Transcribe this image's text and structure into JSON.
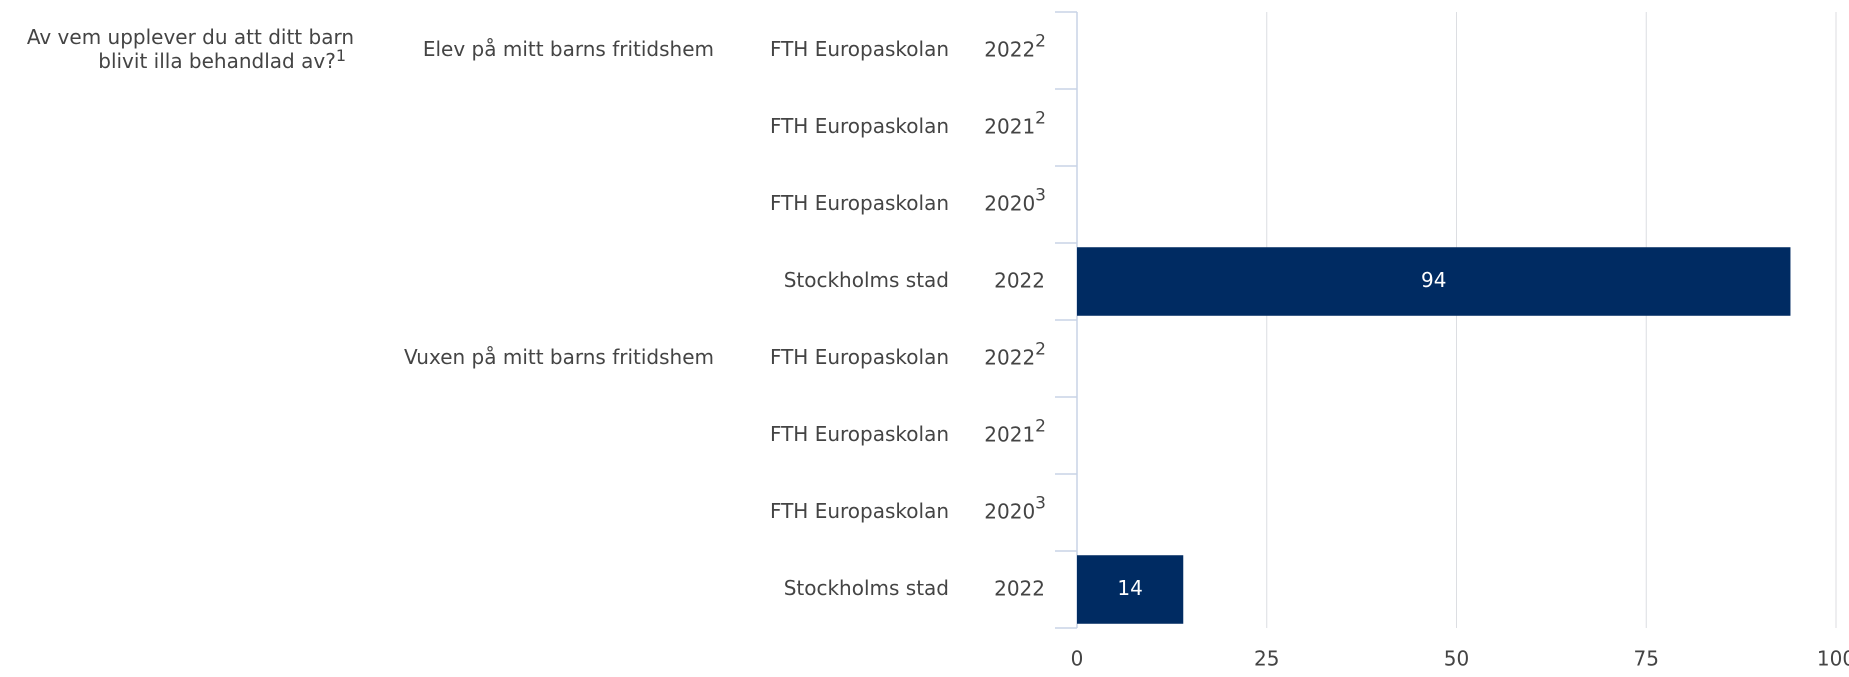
{
  "chart_data": {
    "type": "bar",
    "title": [
      "Av vem upplever du att ditt barn",
      "blivit illa behandlad av?"
    ],
    "title_note": "1",
    "groups": [
      {
        "name": "Elev på mitt barns fritidshem",
        "categories": [
          {
            "label": "FTH Europaskolan",
            "year": "2022",
            "note": "2"
          },
          {
            "label": "FTH Europaskolan",
            "year": "2021",
            "note": "2"
          },
          {
            "label": "FTH Europaskolan",
            "year": "2020",
            "note": "3"
          },
          {
            "label": "Stockholms stad",
            "year": "2022"
          }
        ],
        "values": [
          null,
          null,
          null,
          94
        ]
      },
      {
        "name": "Vuxen på mitt barns fritidshem",
        "categories": [
          {
            "label": "FTH Europaskolan",
            "year": "2022",
            "note": "2"
          },
          {
            "label": "FTH Europaskolan",
            "year": "2021",
            "note": "2"
          },
          {
            "label": "FTH Europaskolan",
            "year": "2020",
            "note": "3"
          },
          {
            "label": "Stockholms stad",
            "year": "2022"
          }
        ],
        "values": [
          null,
          null,
          null,
          14
        ]
      }
    ],
    "color": "#002b62",
    "xlim": [
      0,
      100
    ],
    "xticks": [
      0,
      25,
      50,
      75,
      100
    ],
    "grid": true
  }
}
